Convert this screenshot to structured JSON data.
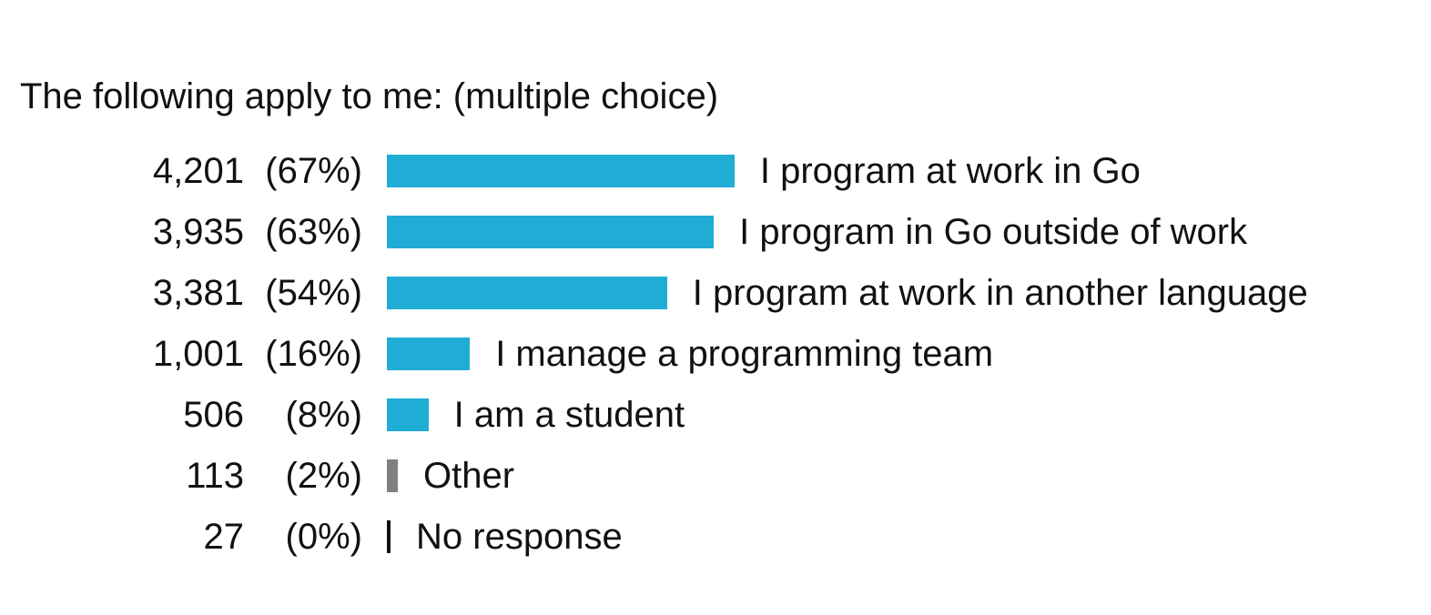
{
  "chart_data": {
    "type": "bar",
    "orientation": "horizontal",
    "title": "The following apply to me: (multiple choice)",
    "xlabel": "",
    "ylabel": "",
    "xlim": [
      0,
      100
    ],
    "grid": false,
    "categories": [
      "I program at work in Go",
      "I program in Go outside of work",
      "I program at work in another language",
      "I manage a programming team",
      "I am a student",
      "Other",
      "No response"
    ],
    "counts": [
      "4,201",
      "3,935",
      "3,381",
      "1,001",
      "506",
      "113",
      "27"
    ],
    "percent_labels": [
      "(67%)",
      "(63%)",
      "(54%)",
      "(16%)",
      "(8%)",
      "(2%)",
      "(0%)"
    ],
    "values": [
      67,
      63,
      54,
      16,
      8,
      2,
      0
    ],
    "colors": [
      "#1fadd6",
      "#1fadd6",
      "#1fadd6",
      "#1fadd6",
      "#1fadd6",
      "#808080",
      "#111111"
    ]
  }
}
